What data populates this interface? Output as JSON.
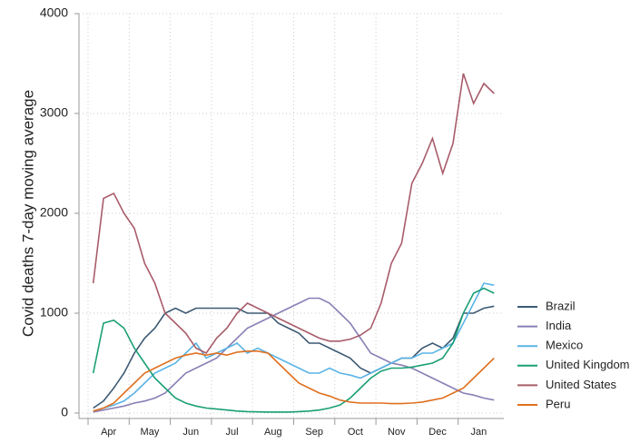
{
  "chart_data": {
    "type": "line",
    "ylabel": "Covid deaths 7-day moving average",
    "categories": [
      null,
      "Apr",
      null,
      null,
      null,
      "May",
      null,
      null,
      null,
      "Jun",
      null,
      null,
      null,
      "Jul",
      null,
      null,
      null,
      "Aug",
      null,
      null,
      null,
      "Sep",
      null,
      null,
      null,
      "Oct",
      null,
      null,
      null,
      "Nov",
      null,
      null,
      null,
      "Dec",
      null,
      null,
      null,
      "Jan",
      null,
      null
    ],
    "ylim": [
      0,
      4000
    ],
    "yticks": [
      0,
      1000,
      2000,
      3000,
      4000
    ],
    "grid": true,
    "legend": "right",
    "series": [
      {
        "name": "Brazil",
        "color": "#3d5a73",
        "values": [
          50,
          120,
          250,
          400,
          600,
          750,
          850,
          1000,
          1050,
          1000,
          1050,
          1050,
          1050,
          1050,
          1050,
          1000,
          1000,
          1000,
          900,
          850,
          800,
          700,
          700,
          650,
          600,
          550,
          450,
          400,
          450,
          500,
          550,
          550,
          650,
          700,
          650,
          750,
          1000,
          1000,
          1050,
          1070
        ]
      },
      {
        "name": "India",
        "color": "#8a7fb5",
        "values": [
          10,
          30,
          50,
          70,
          100,
          120,
          150,
          200,
          300,
          400,
          450,
          500,
          550,
          650,
          750,
          850,
          900,
          950,
          1000,
          1050,
          1100,
          1150,
          1150,
          1100,
          1000,
          900,
          750,
          600,
          550,
          500,
          480,
          450,
          400,
          350,
          300,
          250,
          200,
          180,
          150,
          130
        ]
      },
      {
        "name": "Mexico",
        "color": "#5ab4e5",
        "values": [
          20,
          50,
          80,
          120,
          200,
          300,
          400,
          450,
          500,
          600,
          700,
          550,
          600,
          650,
          700,
          600,
          650,
          600,
          550,
          500,
          450,
          400,
          400,
          450,
          400,
          380,
          350,
          400,
          450,
          500,
          550,
          550,
          600,
          600,
          650,
          700,
          900,
          1100,
          1300,
          1280
        ]
      },
      {
        "name": "United Kingdom",
        "color": "#1a9f76",
        "values": [
          400,
          900,
          930,
          850,
          650,
          500,
          350,
          250,
          150,
          100,
          70,
          50,
          40,
          30,
          20,
          15,
          12,
          10,
          10,
          10,
          15,
          20,
          30,
          50,
          80,
          150,
          250,
          350,
          420,
          450,
          450,
          460,
          480,
          500,
          550,
          700,
          1000,
          1200,
          1250,
          1200
        ]
      },
      {
        "name": "United States",
        "color": "#a85c6a",
        "values": [
          1300,
          2150,
          2200,
          2000,
          1850,
          1500,
          1300,
          1000,
          900,
          800,
          650,
          600,
          750,
          850,
          1000,
          1100,
          1050,
          1000,
          950,
          900,
          850,
          800,
          750,
          720,
          720,
          740,
          780,
          850,
          1100,
          1500,
          1700,
          2300,
          2500,
          2750,
          2400,
          2700,
          3400,
          3100,
          3300,
          3200
        ]
      },
      {
        "name": "Peru",
        "color": "#e07020",
        "values": [
          20,
          50,
          100,
          200,
          300,
          400,
          450,
          500,
          550,
          580,
          600,
          580,
          600,
          580,
          610,
          620,
          620,
          600,
          500,
          400,
          300,
          250,
          200,
          170,
          130,
          110,
          100,
          100,
          100,
          95,
          95,
          100,
          110,
          130,
          150,
          200,
          250,
          350,
          450,
          550
        ]
      }
    ]
  }
}
